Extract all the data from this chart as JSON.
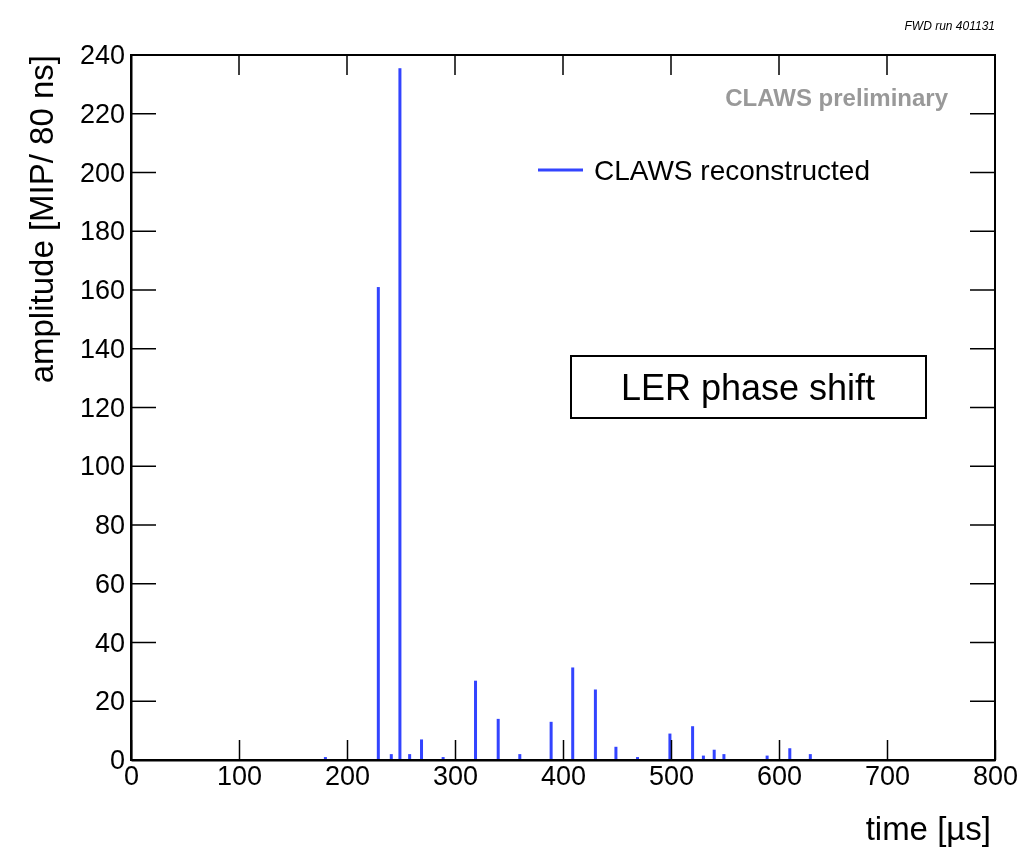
{
  "chart_data": {
    "type": "bar",
    "xlabel": "time [µs]",
    "ylabel": "amplitude [MIP/ 80 ns]",
    "x": [
      180,
      229,
      241,
      249,
      258,
      269,
      289,
      319,
      340,
      360,
      389,
      409,
      430,
      449,
      469,
      499,
      520,
      530,
      540,
      549,
      589,
      610,
      629
    ],
    "series": [
      {
        "name": "CLAWS reconstructed",
        "color": "#3344ff",
        "values": [
          1,
          161,
          2,
          235.5,
          2,
          7,
          1,
          27,
          14,
          2,
          13,
          31.5,
          24,
          4.5,
          1,
          9,
          11.5,
          1.5,
          3.5,
          2,
          1.5,
          4,
          2
        ]
      }
    ],
    "xlim": [
      0,
      800
    ],
    "xticks": [
      0,
      100,
      200,
      300,
      400,
      500,
      600,
      700,
      800
    ],
    "ylim": [
      0,
      240
    ],
    "yticks": [
      0,
      20,
      40,
      60,
      80,
      100,
      120,
      140,
      160,
      180,
      200,
      220,
      240
    ],
    "legend": "top right",
    "annotations": [
      "FWD run 401131",
      "CLAWS preliminary",
      "LER phase shift"
    ]
  }
}
